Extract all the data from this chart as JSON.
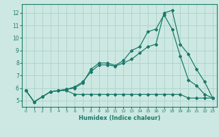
{
  "xlabel": "Humidex (Indice chaleur)",
  "bg_color": "#cde8e2",
  "grid_color": "#afd4cc",
  "line_color": "#1a7a6a",
  "xlim": [
    -0.5,
    23.5
  ],
  "ylim": [
    4.5,
    12.7
  ],
  "xticks": [
    0,
    1,
    2,
    3,
    4,
    5,
    6,
    7,
    8,
    9,
    10,
    11,
    12,
    13,
    14,
    15,
    16,
    17,
    18,
    19,
    20,
    21,
    22,
    23
  ],
  "yticks": [
    5,
    6,
    7,
    8,
    9,
    10,
    11,
    12
  ],
  "line1_x": [
    0,
    1,
    2,
    3,
    4,
    5,
    6,
    7,
    8,
    9,
    10,
    11,
    12,
    13,
    14,
    15,
    16,
    17,
    18,
    19,
    20,
    21,
    22,
    23
  ],
  "line1_y": [
    5.8,
    4.9,
    5.3,
    5.7,
    5.8,
    5.8,
    5.5,
    5.5,
    5.5,
    5.5,
    5.5,
    5.5,
    5.5,
    5.5,
    5.5,
    5.5,
    5.5,
    5.5,
    5.5,
    5.5,
    5.2,
    5.2,
    5.2,
    5.2
  ],
  "line2_x": [
    0,
    1,
    2,
    3,
    4,
    5,
    6,
    7,
    8,
    9,
    10,
    11,
    12,
    13,
    14,
    15,
    16,
    17,
    18,
    19,
    20,
    21,
    22,
    23
  ],
  "line2_y": [
    5.8,
    4.9,
    5.3,
    5.7,
    5.8,
    5.9,
    6.0,
    6.4,
    7.5,
    8.0,
    8.0,
    7.8,
    8.2,
    9.0,
    9.3,
    10.5,
    10.7,
    11.85,
    10.7,
    8.55,
    6.65,
    6.2,
    5.5,
    5.2
  ],
  "line3_x": [
    0,
    1,
    2,
    3,
    4,
    5,
    6,
    7,
    8,
    9,
    10,
    11,
    12,
    13,
    14,
    15,
    16,
    17,
    18,
    19,
    20,
    21,
    22,
    23
  ],
  "line3_y": [
    5.8,
    4.9,
    5.3,
    5.7,
    5.8,
    5.9,
    6.1,
    6.5,
    7.3,
    7.85,
    7.85,
    7.75,
    8.0,
    8.3,
    8.8,
    9.3,
    9.5,
    12.0,
    12.2,
    9.5,
    8.7,
    7.5,
    6.5,
    5.2
  ]
}
